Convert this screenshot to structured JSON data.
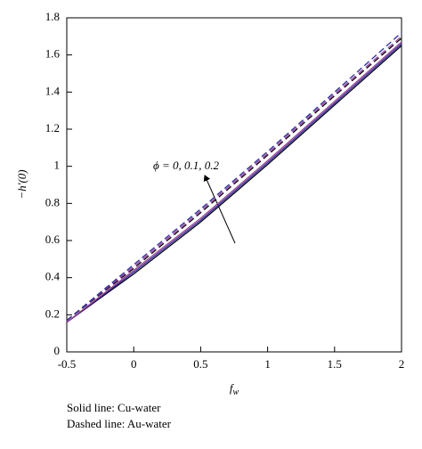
{
  "chart_data": {
    "type": "line",
    "x_label": "f",
    "x_label_subscript": "w",
    "y_label": "−h′(0)",
    "annotation": "ϕ = 0, 0.1, 0.2",
    "notes": [
      "Solid line: Cu-water",
      "Dashed line: Au-water"
    ],
    "x": [
      -0.5,
      0,
      0.5,
      1,
      1.5,
      2
    ],
    "series": [
      {
        "color": "#000000",
        "dashed": false,
        "values": [
          0.16,
          0.42,
          0.7,
          1.01,
          1.33,
          1.65
        ]
      },
      {
        "color": "#2b2ba6",
        "dashed": false,
        "values": [
          0.16,
          0.43,
          0.71,
          1.02,
          1.34,
          1.66
        ]
      },
      {
        "color": "#a0409c",
        "dashed": false,
        "values": [
          0.16,
          0.44,
          0.72,
          1.03,
          1.35,
          1.67
        ]
      },
      {
        "color": "#000000",
        "dashed": true,
        "values": [
          0.17,
          0.45,
          0.75,
          1.06,
          1.38,
          1.69
        ]
      },
      {
        "color": "#a0409c",
        "dashed": true,
        "values": [
          0.17,
          0.46,
          0.76,
          1.07,
          1.39,
          1.7
        ]
      },
      {
        "color": "#2b2ba6",
        "dashed": true,
        "values": [
          0.17,
          0.47,
          0.77,
          1.08,
          1.4,
          1.72
        ]
      }
    ],
    "xlim": [
      -0.5,
      2
    ],
    "ylim": [
      0,
      1.8
    ],
    "xticks": [
      -0.5,
      0,
      0.5,
      1,
      1.5,
      2
    ],
    "yticks": [
      0,
      0.2,
      0.4,
      0.6,
      0.8,
      1,
      1.2,
      1.4,
      1.6,
      1.8
    ]
  }
}
